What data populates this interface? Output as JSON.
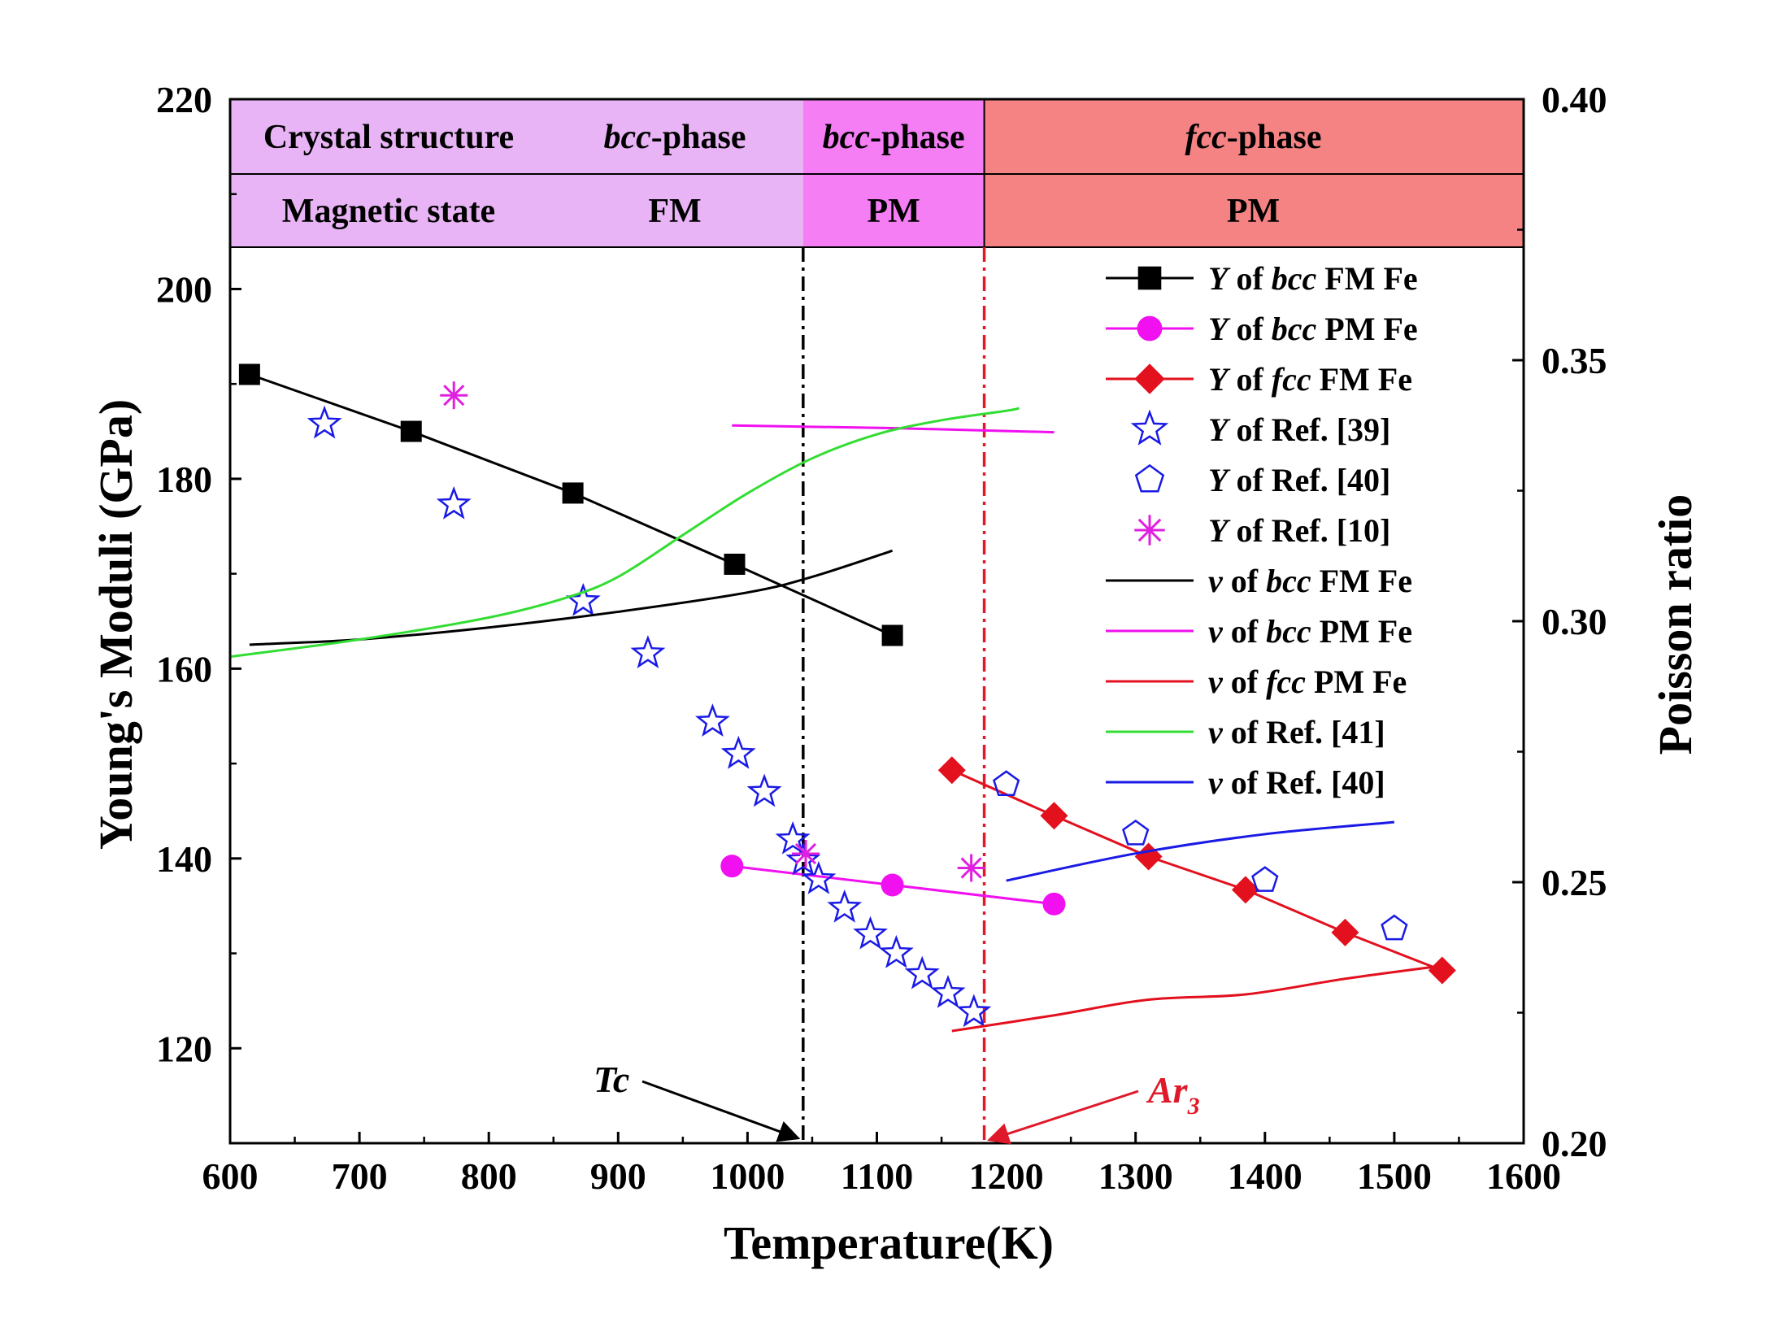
{
  "chart_data": {
    "type": "line",
    "xlabel": "Temperature(K)",
    "ylabel": "Young's Moduli (GPa)",
    "y2label": "Poisson ratio",
    "xlim": [
      600,
      1600
    ],
    "ylim": [
      110,
      220
    ],
    "y2lim": [
      0.2,
      0.4
    ],
    "x_ticks": [
      "600",
      "700",
      "800",
      "900",
      "1000",
      "1100",
      "1200",
      "1300",
      "1400",
      "1500",
      "1600"
    ],
    "y_ticks": [
      "120",
      "140",
      "160",
      "180",
      "200",
      "220"
    ],
    "y2_ticks": [
      "0.20",
      "0.25",
      "0.30",
      "0.35",
      "0.40"
    ],
    "phase_bands": {
      "row1": {
        "label": "Crystal structure",
        "segments": [
          {
            "x_from": 600,
            "x_to": 1043,
            "italic": "bcc",
            "suffix": "-phase",
            "color": "#e8b4f5"
          },
          {
            "x_from": 1043,
            "x_to": 1183,
            "italic": "bcc",
            "suffix": "-phase",
            "color": "#f57ef5"
          },
          {
            "x_from": 1183,
            "x_to": 1600,
            "italic": "fcc",
            "suffix": "-phase",
            "color": "#f58383"
          }
        ]
      },
      "row2": {
        "label": "Magnetic state",
        "segments": [
          {
            "x_from": 600,
            "x_to": 1043,
            "text": "FM",
            "color": "#e8b4f5"
          },
          {
            "x_from": 1043,
            "x_to": 1183,
            "text": "PM",
            "color": "#f57ef5"
          },
          {
            "x_from": 1183,
            "x_to": 1600,
            "text": "PM",
            "color": "#f58383"
          }
        ]
      }
    },
    "vlines": [
      {
        "x": 1043,
        "color": "#000000",
        "label": "Tc",
        "label_italic": true
      },
      {
        "x": 1183,
        "color": "#e0192a",
        "label": "Ar",
        "label_sub": "3"
      }
    ],
    "series": [
      {
        "name": "Y of bcc FM Fe",
        "pre": "Y",
        "mid_plain": " of ",
        "mid_italic": "bcc",
        "post": " FM Fe",
        "axis": "left",
        "color": "#000000",
        "marker": "square",
        "line": true,
        "x": [
          615,
          740,
          865,
          990,
          1112
        ],
        "y": [
          191,
          185,
          178.5,
          171,
          163.5
        ]
      },
      {
        "name": "Y of bcc PM Fe",
        "pre": "Y",
        "mid_plain": " of ",
        "mid_italic": "bcc",
        "post": " PM Fe",
        "axis": "left",
        "color": "#f010f0",
        "marker": "circle",
        "line": true,
        "x": [
          988,
          1112,
          1237
        ],
        "y": [
          139.2,
          137.2,
          135.2
        ]
      },
      {
        "name": "Y of fcc FM Fe",
        "pre": "Y",
        "mid_plain": " of ",
        "mid_italic": "fcc",
        "post": " FM Fe",
        "axis": "left",
        "color": "#e3101e",
        "marker": "diamond",
        "line": true,
        "x": [
          1158,
          1237,
          1310,
          1385,
          1462,
          1537
        ],
        "y": [
          149.3,
          144.5,
          140.2,
          136.7,
          132.2,
          128.2
        ]
      },
      {
        "name": "Y of Ref. [39]",
        "pre": "Y",
        "mid_plain": " of Ref. [39]",
        "mid_italic": "",
        "post": "",
        "axis": "left",
        "color": "#1a1ae6",
        "marker": "star",
        "line": false,
        "x": [
          673,
          773,
          873,
          923,
          973,
          993,
          1013,
          1035,
          1043,
          1055,
          1075,
          1095,
          1115,
          1135,
          1155,
          1175
        ],
        "y": [
          185.8,
          177.3,
          167.1,
          161.6,
          154.4,
          151,
          147,
          142,
          139.8,
          137.8,
          134.8,
          132,
          130,
          127.8,
          125.8,
          123.8
        ]
      },
      {
        "name": "Y of Ref. [40]",
        "pre": "Y",
        "mid_plain": " of Ref. [40]",
        "mid_italic": "",
        "post": "",
        "axis": "left",
        "color": "#1a1ae6",
        "marker": "pentagon",
        "line": false,
        "x": [
          1200,
          1300,
          1400,
          1500
        ],
        "y": [
          147.8,
          142.6,
          137.7,
          132.6
        ]
      },
      {
        "name": "Y of Ref. [10]",
        "pre": "Y",
        "mid_plain": " of Ref. [10]",
        "mid_italic": "",
        "post": "",
        "axis": "left",
        "color": "#e020e0",
        "marker": "asterisk",
        "line": false,
        "x": [
          773,
          1045,
          1173
        ],
        "y": [
          188.8,
          140.5,
          139
        ]
      },
      {
        "name": "ν of bcc FM Fe",
        "pre": "ν",
        "mid_plain": " of ",
        "mid_italic": "bcc",
        "post": " FM Fe",
        "axis": "right",
        "color": "#000000",
        "marker": "none",
        "line": true,
        "smooth": true,
        "x": [
          615,
          700,
          800,
          900,
          1000,
          1050,
          1112
        ],
        "y": [
          0.2955,
          0.2965,
          0.2988,
          0.3018,
          0.3055,
          0.3085,
          0.3135
        ]
      },
      {
        "name": "ν of bcc PM Fe",
        "pre": "ν",
        "mid_plain": " of ",
        "mid_italic": "bcc",
        "post": " PM Fe",
        "axis": "right",
        "color": "#f010f0",
        "marker": "none",
        "line": true,
        "x": [
          988,
          1112,
          1237
        ],
        "y": [
          0.3375,
          0.337,
          0.3362
        ]
      },
      {
        "name": "ν of fcc PM Fe",
        "pre": "ν",
        "mid_plain": " of ",
        "mid_italic": "fcc",
        "post": " PM Fe",
        "axis": "right",
        "color": "#e3101e",
        "marker": "none",
        "line": true,
        "smooth": true,
        "x": [
          1158,
          1237,
          1310,
          1385,
          1462,
          1537
        ],
        "y": [
          0.2215,
          0.2245,
          0.2275,
          0.2285,
          0.2315,
          0.234
        ]
      },
      {
        "name": "ν of Ref. [41]",
        "pre": "ν",
        "mid_plain": " of Ref. [41]",
        "mid_italic": "",
        "post": "",
        "axis": "right",
        "color": "#33dd33",
        "marker": "none",
        "line": true,
        "smooth": true,
        "x": [
          600,
          700,
          800,
          860,
          900,
          950,
          1000,
          1050,
          1100,
          1150,
          1200,
          1210
        ],
        "y": [
          0.2932,
          0.2965,
          0.3007,
          0.3045,
          0.3085,
          0.3165,
          0.3245,
          0.3312,
          0.3358,
          0.3385,
          0.3403,
          0.3408
        ]
      },
      {
        "name": "ν of Ref. [40]",
        "pre": "ν",
        "mid_plain": " of Ref. [40]",
        "mid_italic": "",
        "post": "",
        "axis": "right",
        "color": "#1a1ae6",
        "marker": "none",
        "line": true,
        "smooth": true,
        "x": [
          1200,
          1300,
          1400,
          1500
        ],
        "y": [
          0.2503,
          0.2555,
          0.2592,
          0.2615
        ]
      }
    ],
    "legend_position": "top-right inside"
  }
}
